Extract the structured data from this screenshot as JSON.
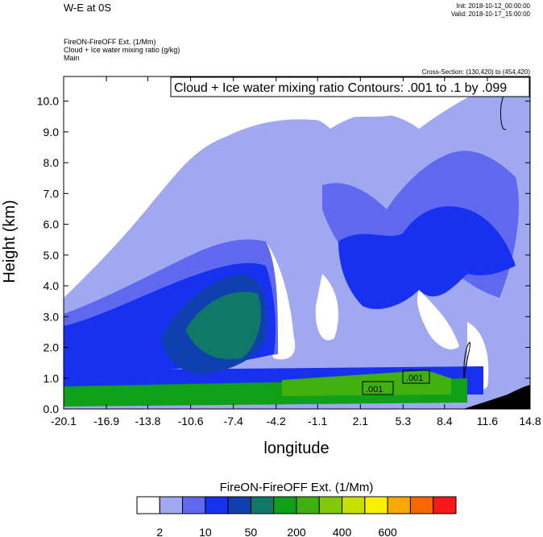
{
  "header": {
    "left_title": "W-E at 0S",
    "init": "Init: 2018-10-12_00:00:00",
    "valid": "Valid: 2018-10-17_15:00:00",
    "subtitle_lines": [
      "FireON-FireOFF Ext.  (1/Mm)",
      "Cloud + Ice water mixing ratio   (g/kg)",
      "Main"
    ],
    "cross_section": "Cross-Section: (130,420) to (454,420)"
  },
  "chart_data": {
    "type": "heatmap",
    "title": "Cloud + Ice water mixing ratio Contours: .001 to .1 by .099",
    "xlabel": "longitude",
    "ylabel": "Height (km)",
    "x_ticks": [
      "-20.1",
      "-16.9",
      "-13.8",
      "-10.6",
      "-7.4",
      "-4.2",
      "-1.1",
      "2.1",
      "5.3",
      "8.4",
      "11.6",
      "14.8"
    ],
    "y_ticks": [
      "0.0",
      "1.0",
      "2.0",
      "3.0",
      "4.0",
      "5.0",
      "6.0",
      "7.0",
      "8.0",
      "9.0",
      "10.0"
    ],
    "xlim": [
      -20.1,
      14.8
    ],
    "ylim": [
      0,
      10.8
    ],
    "contour_labels": [
      ".001",
      ".001"
    ],
    "colorbar": {
      "title": "FireON-FireOFF Ext.  (1/Mm)",
      "colors": [
        "#ffffff",
        "#a0a8f0",
        "#6068f0",
        "#1830f0",
        "#1040b0",
        "#107868",
        "#10a018",
        "#40b010",
        "#80c808",
        "#c8e000",
        "#f8f000",
        "#f8a800",
        "#f86800",
        "#f81818"
      ],
      "labels": [
        "2",
        "10",
        "50",
        "200",
        "400",
        "600"
      ]
    }
  }
}
